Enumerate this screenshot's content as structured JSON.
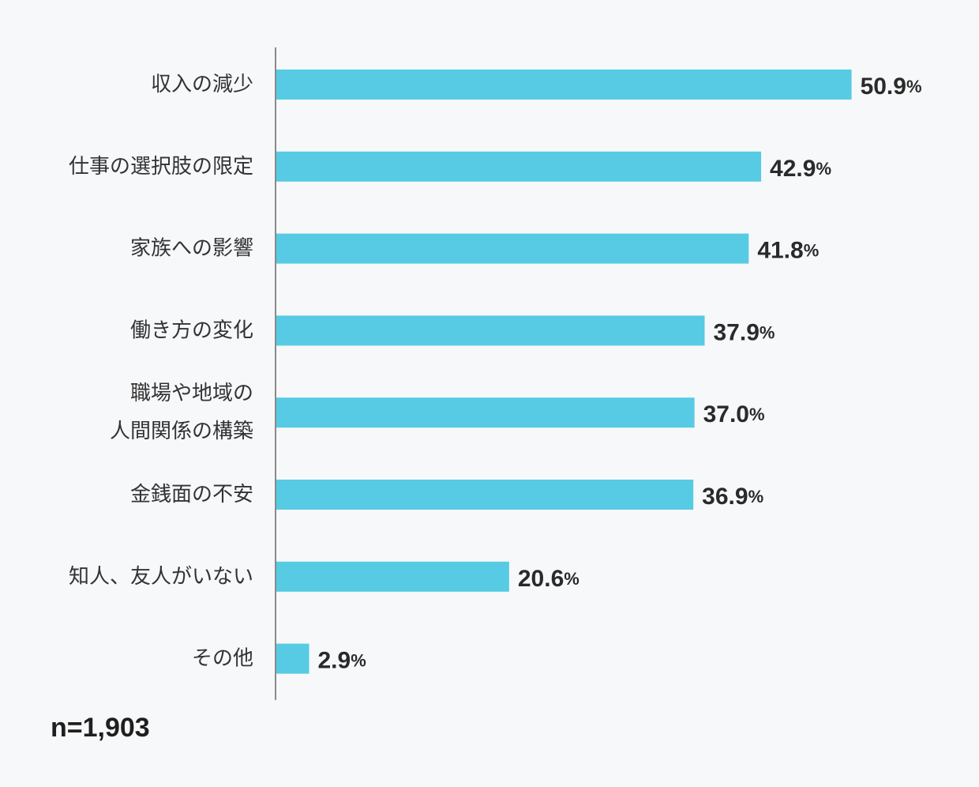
{
  "chart_data": {
    "type": "bar",
    "orientation": "horizontal",
    "categories": [
      [
        "収入の減少"
      ],
      [
        "仕事の選択肢の限定"
      ],
      [
        "家族への影響"
      ],
      [
        "働き方の変化"
      ],
      [
        "職場や地域の",
        "人間関係の構築"
      ],
      [
        "金銭面の不安"
      ],
      [
        "知人、友人がいない"
      ],
      [
        "その他"
      ]
    ],
    "values": [
      50.9,
      42.9,
      41.8,
      37.9,
      37.0,
      36.9,
      20.6,
      2.9
    ],
    "value_labels": [
      "50.9",
      "42.9",
      "41.8",
      "37.9",
      "37.0",
      "36.9",
      "20.6",
      "2.9"
    ],
    "value_unit": "%",
    "xlim": [
      0,
      51
    ],
    "grid": false,
    "legend": "none",
    "colors": {
      "bar": "#56cbe3",
      "axis": "#8a8a8a",
      "text": "#333333",
      "background": "#f7f8fa"
    }
  },
  "footnote": "n=1,903"
}
